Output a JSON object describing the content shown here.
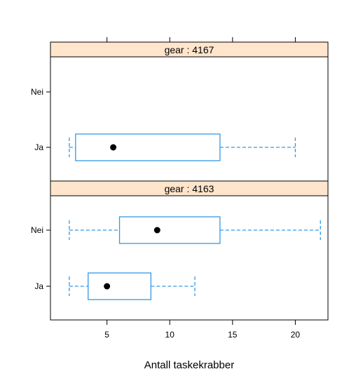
{
  "chart_data": {
    "type": "boxplot",
    "xlabel": "Antall taskekrabber",
    "xlim": [
      0.5,
      22.6
    ],
    "xticks": [
      5,
      10,
      15,
      20
    ],
    "categories": [
      "Ja",
      "Nei"
    ],
    "panels": [
      {
        "strip_label": "gear : 4163",
        "boxes": [
          {
            "category": "Ja",
            "min": 2,
            "q1": 3.5,
            "median": 5,
            "q3": 8.5,
            "max": 12
          },
          {
            "category": "Nei",
            "min": 2,
            "q1": 6,
            "median": 9,
            "q3": 14,
            "max": 22
          }
        ]
      },
      {
        "strip_label": "gear : 4167",
        "boxes": [
          {
            "category": "Ja",
            "min": 2,
            "q1": 2.5,
            "median": 5.5,
            "q3": 14,
            "max": 20
          }
        ]
      }
    ],
    "colors": {
      "box": "#3399e6",
      "strip": "#ffe5cc",
      "median_dot": "#000000",
      "frame": "#000000"
    }
  }
}
